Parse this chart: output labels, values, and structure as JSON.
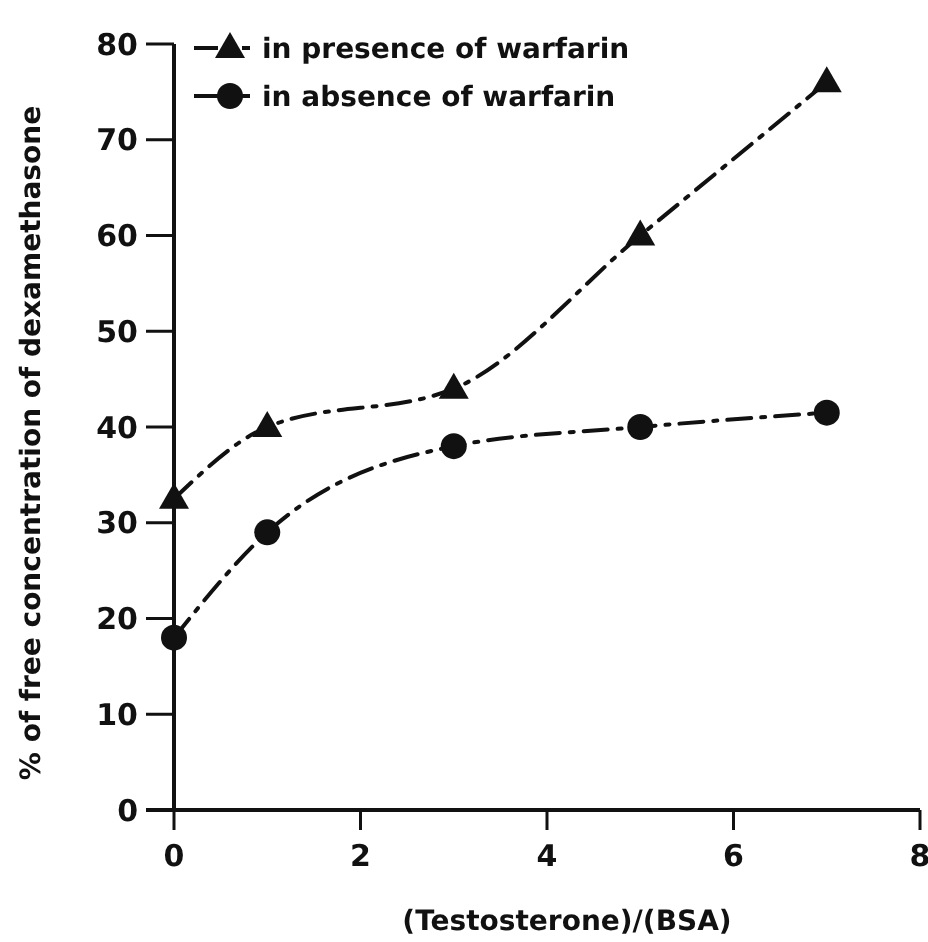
{
  "chart_data": {
    "type": "line",
    "xlabel": "(Testosterone)/(BSA)",
    "ylabel": "% of free concentration of dexamethasone",
    "x": [
      0,
      1,
      3,
      5,
      7
    ],
    "series": [
      {
        "name": "in presence of warfarin",
        "color": "#111111",
        "values": [
          32.5,
          40,
          44,
          60,
          76
        ],
        "marker": "triangle"
      },
      {
        "name": "in absence of warfarin",
        "color": "#111111",
        "values": [
          18,
          29,
          38,
          40,
          41.5
        ],
        "marker": "circle"
      }
    ],
    "xlim": [
      0,
      8
    ],
    "xticks": [
      0,
      2,
      4,
      6,
      8
    ],
    "ylim": [
      0,
      80
    ],
    "yticks": [
      0,
      10,
      20,
      30,
      40,
      50,
      60,
      70,
      80
    ],
    "grid": false,
    "legend": "top left",
    "line_style": "dashed"
  }
}
